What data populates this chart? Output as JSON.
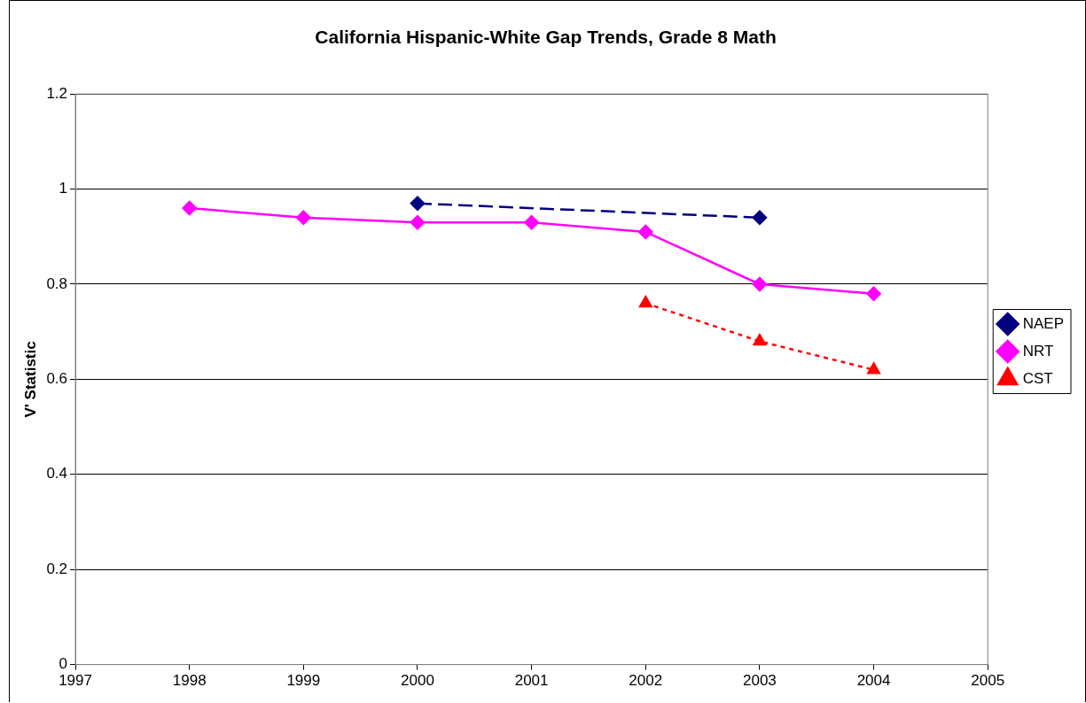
{
  "chart_data": {
    "type": "line",
    "title": "California Hispanic-White Gap Trends, Grade 8 Math",
    "ylabel": "V' Statistic",
    "xlim": [
      1997,
      2005
    ],
    "xticks": [
      1997,
      1998,
      1999,
      2000,
      2001,
      2002,
      2003,
      2004,
      2005
    ],
    "ylim": [
      0,
      1.2
    ],
    "yticks": [
      0,
      0.2,
      0.4,
      0.6,
      0.8,
      1,
      1.2
    ],
    "grid": "y",
    "legend": "right",
    "series": [
      {
        "name": "NAEP",
        "color": "#000080",
        "marker": "diamond",
        "line_style": "dashed",
        "x": [
          2000,
          2003
        ],
        "values": [
          0.97,
          0.94
        ]
      },
      {
        "name": "NRT",
        "color": "#ff00ff",
        "marker": "diamond",
        "line_style": "solid",
        "x": [
          1998,
          1999,
          2000,
          2001,
          2002,
          2003,
          2004
        ],
        "values": [
          0.96,
          0.94,
          0.93,
          0.93,
          0.91,
          0.8,
          0.78
        ]
      },
      {
        "name": "CST",
        "color": "#ff0000",
        "marker": "triangle",
        "line_style": "dotted",
        "x": [
          2002,
          2003,
          2004
        ],
        "values": [
          0.76,
          0.68,
          0.62
        ]
      }
    ]
  }
}
